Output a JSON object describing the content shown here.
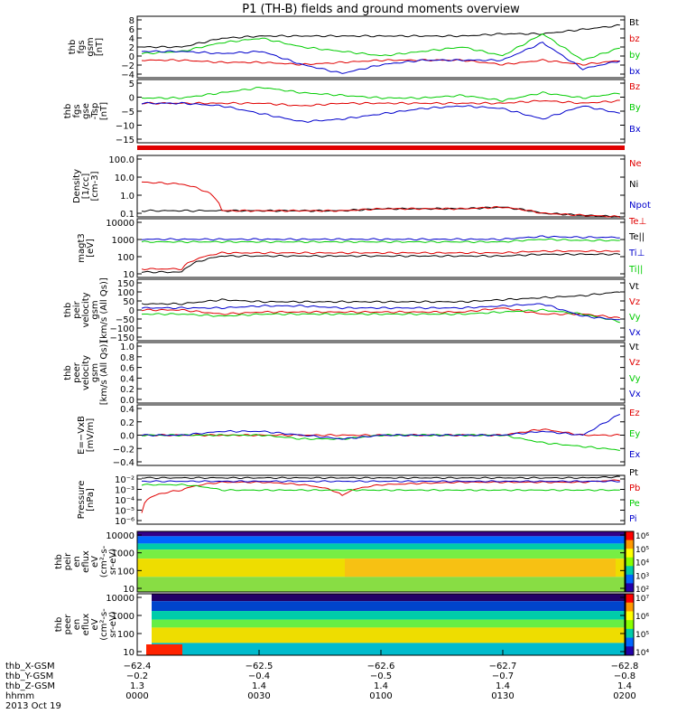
{
  "title": "P1 (TH-B) fields and ground moments overview",
  "colors": {
    "black": "#000000",
    "red": "#e00000",
    "green": "#00cc00",
    "blue": "#0000cc"
  },
  "chart_data": [
    {
      "type": "line",
      "ylabel": [
        "thb",
        "fgs",
        "gsm",
        "[nT]"
      ],
      "yticks": [
        "8",
        "6",
        "4",
        "2",
        "0",
        "−2",
        "−4"
      ],
      "ylim": [
        -5,
        9
      ],
      "legend": [
        "Bt",
        "bz",
        "by",
        "bx"
      ],
      "x": [
        0,
        10,
        20,
        30,
        40,
        50,
        60,
        70,
        80,
        90,
        100,
        110,
        120
      ],
      "series": [
        {
          "name": "Bt",
          "color": "black",
          "values": [
            2,
            2,
            4,
            4.5,
            4.5,
            4.5,
            4.5,
            4.5,
            4.5,
            5,
            5,
            6,
            7
          ]
        },
        {
          "name": "bz",
          "color": "red",
          "values": [
            -1,
            -1,
            -1.5,
            -1.5,
            -2,
            -1.5,
            -1,
            -1,
            -1,
            -2,
            -1,
            -2,
            -1
          ]
        },
        {
          "name": "by",
          "color": "green",
          "values": [
            0.5,
            1,
            3,
            4,
            2,
            1,
            0,
            1,
            2,
            0,
            5,
            -1,
            2
          ]
        },
        {
          "name": "bx",
          "color": "blue",
          "values": [
            1,
            1,
            0.5,
            1,
            -2,
            -4,
            -2,
            -1,
            -1,
            -1,
            3,
            -3,
            -1
          ]
        }
      ]
    },
    {
      "type": "line",
      "ylabel": [
        "thb",
        "fgs",
        "gse",
        "-Tsp",
        "[nT]"
      ],
      "yticks": [
        "5",
        "0",
        "−5",
        "−10",
        "−15"
      ],
      "ylim": [
        -17,
        7
      ],
      "legend": [
        "Bz",
        "By",
        "Bx"
      ],
      "x": [
        0,
        10,
        20,
        30,
        40,
        50,
        60,
        70,
        80,
        90,
        100,
        110,
        120
      ],
      "series": [
        {
          "name": "Bz",
          "color": "red",
          "values": [
            -2,
            -2,
            -2,
            -2,
            -3,
            -2,
            -2,
            -2,
            -2,
            -2,
            -1,
            -2,
            -1
          ]
        },
        {
          "name": "By",
          "color": "green",
          "values": [
            0,
            0,
            2,
            4,
            2,
            1,
            0,
            0,
            1,
            -1,
            2,
            0,
            2
          ]
        },
        {
          "name": "Bx",
          "color": "blue",
          "values": [
            -2,
            -2,
            -3,
            -6,
            -9,
            -8,
            -6,
            -4,
            -3,
            -4,
            -8,
            -3,
            -6
          ]
        }
      ]
    },
    {
      "type": "line",
      "ylog": true,
      "ylabel": [
        "Density",
        "[1/cc]",
        "[cm-3]"
      ],
      "yticks": [
        "100.0",
        "10.0",
        "1.0",
        "0.1"
      ],
      "ylim": [
        0.1,
        100
      ],
      "legend": [
        "Ne",
        "Ni",
        "Npot"
      ],
      "x": [
        0,
        10,
        20,
        30,
        40,
        50,
        60,
        70,
        80,
        90,
        100,
        110,
        120
      ],
      "series": [
        {
          "name": "Ni",
          "color": "black",
          "values": [
            0.2,
            0.2,
            0.2,
            0.2,
            0.2,
            0.2,
            0.25,
            0.25,
            0.25,
            0.3,
            0.15,
            0.12,
            0.1
          ]
        },
        {
          "name": "Ne",
          "color": "red",
          "values": [
            5,
            4,
            0.2,
            0.2,
            0.2,
            0.2,
            0.25,
            0.25,
            0.25,
            0.3,
            0.15,
            0.12,
            0.1
          ]
        }
      ]
    },
    {
      "type": "line",
      "ylog": true,
      "ylabel": [
        "magt3",
        "[eV]"
      ],
      "yticks": [
        "10000",
        "1000",
        "100",
        "10"
      ],
      "ylim": [
        5,
        10000
      ],
      "legend": [
        "Te⊥",
        "Te||",
        "Ti⊥",
        "Ti||"
      ],
      "x": [
        0,
        10,
        20,
        30,
        40,
        50,
        60,
        70,
        80,
        90,
        100,
        110,
        120
      ],
      "series": [
        {
          "name": "Te⊥",
          "color": "red",
          "values": [
            15,
            15,
            120,
            120,
            120,
            120,
            120,
            120,
            120,
            120,
            150,
            150,
            150
          ]
        },
        {
          "name": "Te||",
          "color": "black",
          "values": [
            10,
            10,
            80,
            80,
            80,
            80,
            80,
            80,
            80,
            80,
            100,
            100,
            100
          ]
        },
        {
          "name": "Ti⊥",
          "color": "blue",
          "values": [
            700,
            700,
            700,
            700,
            700,
            700,
            700,
            700,
            700,
            700,
            1000,
            900,
            900
          ]
        },
        {
          "name": "Ti||",
          "color": "green",
          "values": [
            500,
            500,
            500,
            500,
            500,
            500,
            500,
            500,
            500,
            500,
            700,
            600,
            600
          ]
        }
      ]
    },
    {
      "type": "line",
      "ylabel": [
        "thb",
        "peir",
        "velocity",
        "gsm",
        "[km/s (All Qs)]"
      ],
      "yticks": [
        "150",
        "100",
        "50",
        "0",
        "−50",
        "−100",
        "−150"
      ],
      "ylim": [
        -150,
        150
      ],
      "legend": [
        "Vt",
        "Vz",
        "Vy",
        "Vx"
      ],
      "x": [
        0,
        10,
        20,
        30,
        40,
        50,
        60,
        70,
        80,
        90,
        100,
        110,
        120
      ],
      "series": [
        {
          "name": "Vt",
          "color": "black",
          "values": [
            30,
            30,
            50,
            40,
            40,
            40,
            40,
            40,
            40,
            50,
            60,
            70,
            90
          ]
        },
        {
          "name": "Vz",
          "color": "red",
          "values": [
            0,
            0,
            -20,
            -10,
            -10,
            -10,
            -10,
            -10,
            -10,
            10,
            -20,
            -20,
            -40
          ]
        },
        {
          "name": "Vy",
          "color": "green",
          "values": [
            -20,
            -20,
            -30,
            -20,
            -20,
            -20,
            -20,
            -20,
            -20,
            -10,
            0,
            -20,
            -60
          ]
        },
        {
          "name": "Vx",
          "color": "blue",
          "values": [
            10,
            10,
            10,
            20,
            20,
            10,
            10,
            10,
            10,
            20,
            30,
            -30,
            -50
          ]
        }
      ]
    },
    {
      "type": "line",
      "ylabel": [
        "thb",
        "peer",
        "velocity",
        "gsm",
        "[km/s (All Qs)]"
      ],
      "yticks": [
        "1.0",
        "0.8",
        "0.6",
        "0.4",
        "0.2",
        "0.0"
      ],
      "ylim": [
        0,
        1
      ],
      "legend": [
        "Vt",
        "Vz",
        "Vy",
        "Vx"
      ],
      "series": []
    },
    {
      "type": "line",
      "ylabel": [
        "E=−VxB",
        "[mV/m]"
      ],
      "yticks": [
        "0.4",
        "0.2",
        "0.0",
        "−0.2",
        "−0.4"
      ],
      "ylim": [
        -0.4,
        0.4
      ],
      "legend": [
        "Ez",
        "Ey",
        "Ex"
      ],
      "x": [
        0,
        10,
        20,
        30,
        40,
        50,
        60,
        70,
        80,
        90,
        100,
        110,
        120
      ],
      "series": [
        {
          "name": "Ez",
          "color": "red",
          "values": [
            0,
            0,
            0,
            0,
            0,
            0,
            0,
            0,
            0,
            0,
            0.08,
            0,
            0
          ]
        },
        {
          "name": "Ey",
          "color": "green",
          "values": [
            0,
            0,
            0,
            0,
            -0.05,
            -0.05,
            0,
            0,
            0,
            0,
            -0.1,
            -0.15,
            -0.2
          ]
        },
        {
          "name": "Ex",
          "color": "blue",
          "values": [
            0,
            0,
            0.05,
            0.05,
            0,
            -0.05,
            0,
            0,
            0,
            0,
            0.05,
            0,
            0.3
          ]
        }
      ]
    },
    {
      "type": "line",
      "ylog": true,
      "ylabel": [
        "Pressure",
        "[nPa]"
      ],
      "yticks": [
        "10⁻²",
        "10⁻³",
        "10⁻⁴",
        "10⁻⁵",
        "10⁻⁶"
      ],
      "ylim": [
        1e-06,
        0.02
      ],
      "legend": [
        "Pt",
        "Pb",
        "Pe",
        "Pi"
      ],
      "x": [
        0,
        10,
        20,
        30,
        40,
        50,
        60,
        70,
        80,
        90,
        100,
        110,
        120
      ],
      "series": [
        {
          "name": "Pt",
          "color": "black",
          "values": [
            0.012,
            0.012,
            0.012,
            0.012,
            0.012,
            0.012,
            0.012,
            0.012,
            0.012,
            0.012,
            0.012,
            0.012,
            0.015
          ]
        },
        {
          "name": "Pb",
          "color": "red",
          "values": [
            1e-05,
            0.001,
            0.005,
            0.005,
            0.003,
            0.0003,
            0.003,
            0.004,
            0.005,
            0.005,
            0.005,
            0.005,
            0.008
          ]
        },
        {
          "name": "Pe",
          "color": "green",
          "values": [
            0.003,
            0.003,
            0.001,
            0.001,
            0.001,
            0.001,
            0.001,
            0.001,
            0.001,
            0.001,
            0.001,
            0.001,
            0.001
          ]
        },
        {
          "name": "Pi",
          "color": "blue",
          "values": [
            0.006,
            0.006,
            0.006,
            0.006,
            0.006,
            0.006,
            0.006,
            0.006,
            0.006,
            0.006,
            0.006,
            0.006,
            0.006
          ]
        }
      ]
    },
    {
      "type": "heatmap",
      "ylog": true,
      "ylabel": [
        "thb",
        "peir",
        "en",
        "eflux",
        "eV",
        "(cm²-s-",
        "sr-eV)"
      ],
      "yticks": [
        "10000",
        "1000",
        "100",
        "10"
      ],
      "colorbar": [
        "10⁶",
        "10⁵",
        "10⁴",
        "10³",
        "10²"
      ]
    },
    {
      "type": "heatmap",
      "ylog": true,
      "ylabel": [
        "thb",
        "peer",
        "en",
        "eflux",
        "eV",
        "(cm²-s-",
        "sr-eV)"
      ],
      "yticks": [
        "10000",
        "1000",
        "100",
        "10"
      ],
      "colorbar": [
        "10⁷",
        "10⁶",
        "10⁵",
        "10⁴"
      ]
    }
  ],
  "xaxis": {
    "rows": [
      {
        "label": "thb_X-GSM",
        "values": [
          "−62.4",
          "−62.5",
          "−62.6",
          "−62.7",
          "−62.8"
        ]
      },
      {
        "label": "thb_Y-GSM",
        "values": [
          "−0.2",
          "−0.4",
          "−0.5",
          "−0.7",
          "−0.8"
        ]
      },
      {
        "label": "thb_Z-GSM",
        "values": [
          "1.3",
          "1.4",
          "1.4",
          "1.4",
          "1.4"
        ]
      },
      {
        "label": "hhmm",
        "values": [
          "0000",
          "0030",
          "0100",
          "0130",
          "0200"
        ]
      }
    ],
    "date": "2013 Oct 19"
  }
}
